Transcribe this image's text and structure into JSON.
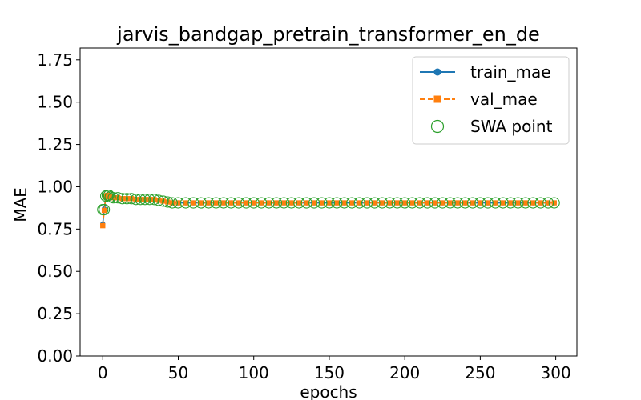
{
  "chart_data": {
    "type": "line",
    "title": "jarvis_bandgap_pretrain_transformer_en_de",
    "xlabel": "epochs",
    "ylabel": "MAE",
    "xlim": [
      -15,
      314
    ],
    "ylim": [
      0,
      1.82
    ],
    "xticks": [
      0,
      50,
      100,
      150,
      200,
      250,
      300
    ],
    "xtick_labels": [
      "0",
      "50",
      "100",
      "150",
      "200",
      "250",
      "300"
    ],
    "yticks": [
      0,
      0.25,
      0.5,
      0.75,
      1.0,
      1.25,
      1.5,
      1.75
    ],
    "ytick_labels": [
      "0.00",
      "0.25",
      "0.50",
      "0.75",
      "1.00",
      "1.25",
      "1.50",
      "1.75"
    ],
    "grid": false,
    "legend_position": "upper right",
    "series": [
      {
        "name": "train_mae",
        "color": "#1f77b4",
        "marker": "circle",
        "linestyle": "solid",
        "x": [
          0,
          1,
          2,
          3,
          4,
          5,
          7,
          10,
          13,
          16,
          19,
          22,
          25,
          28,
          31,
          34,
          37,
          40,
          43,
          46,
          50,
          55,
          60,
          65,
          70,
          75,
          80,
          85,
          90,
          95,
          100,
          105,
          110,
          115,
          120,
          125,
          130,
          135,
          140,
          145,
          150,
          155,
          160,
          165,
          170,
          175,
          180,
          185,
          190,
          195,
          200,
          205,
          210,
          215,
          220,
          225,
          230,
          235,
          240,
          245,
          250,
          255,
          260,
          265,
          270,
          275,
          280,
          285,
          290,
          295,
          299
        ],
        "values": [
          0.78,
          0.87,
          0.94,
          0.95,
          0.95,
          0.94,
          0.94,
          0.935,
          0.93,
          0.93,
          0.93,
          0.925,
          0.925,
          0.925,
          0.925,
          0.925,
          0.92,
          0.915,
          0.91,
          0.905,
          0.905,
          0.905,
          0.905,
          0.905,
          0.905,
          0.905,
          0.905,
          0.905,
          0.905,
          0.905,
          0.905,
          0.905,
          0.905,
          0.905,
          0.905,
          0.905,
          0.905,
          0.905,
          0.905,
          0.905,
          0.905,
          0.905,
          0.905,
          0.905,
          0.905,
          0.905,
          0.905,
          0.905,
          0.905,
          0.905,
          0.905,
          0.905,
          0.905,
          0.905,
          0.905,
          0.905,
          0.905,
          0.905,
          0.905,
          0.905,
          0.905,
          0.905,
          0.905,
          0.905,
          0.905,
          0.905,
          0.905,
          0.905,
          0.905,
          0.905,
          0.905
        ]
      },
      {
        "name": "val_mae",
        "color": "#ff7f0e",
        "marker": "square",
        "linestyle": "dashed",
        "x": [
          0,
          1,
          2,
          3,
          4,
          5,
          7,
          10,
          13,
          16,
          19,
          22,
          25,
          28,
          31,
          34,
          37,
          40,
          43,
          46,
          50,
          55,
          60,
          65,
          70,
          75,
          80,
          85,
          90,
          95,
          100,
          105,
          110,
          115,
          120,
          125,
          130,
          135,
          140,
          145,
          150,
          155,
          160,
          165,
          170,
          175,
          180,
          185,
          190,
          195,
          200,
          205,
          210,
          215,
          220,
          225,
          230,
          235,
          240,
          245,
          250,
          255,
          260,
          265,
          270,
          275,
          280,
          285,
          290,
          295,
          299
        ],
        "values": [
          0.77,
          0.86,
          0.94,
          0.95,
          0.95,
          0.94,
          0.935,
          0.935,
          0.93,
          0.93,
          0.93,
          0.925,
          0.925,
          0.925,
          0.925,
          0.925,
          0.92,
          0.915,
          0.91,
          0.905,
          0.905,
          0.905,
          0.905,
          0.905,
          0.905,
          0.905,
          0.905,
          0.905,
          0.905,
          0.905,
          0.905,
          0.905,
          0.905,
          0.905,
          0.905,
          0.905,
          0.905,
          0.905,
          0.905,
          0.905,
          0.905,
          0.905,
          0.905,
          0.905,
          0.905,
          0.905,
          0.905,
          0.905,
          0.905,
          0.905,
          0.905,
          0.905,
          0.905,
          0.905,
          0.905,
          0.905,
          0.905,
          0.905,
          0.905,
          0.905,
          0.905,
          0.905,
          0.905,
          0.905,
          0.905,
          0.905,
          0.905,
          0.905,
          0.905,
          0.905,
          0.905
        ]
      },
      {
        "name": "SWA point",
        "color": "#2ca02c",
        "marker": "open-circle",
        "linestyle": "none",
        "x": [
          0,
          1,
          2,
          3,
          4,
          5,
          7,
          10,
          13,
          16,
          19,
          22,
          25,
          28,
          31,
          34,
          37,
          40,
          43,
          46,
          50,
          55,
          60,
          65,
          70,
          75,
          80,
          85,
          90,
          95,
          100,
          105,
          110,
          115,
          120,
          125,
          130,
          135,
          140,
          145,
          150,
          155,
          160,
          165,
          170,
          175,
          180,
          185,
          190,
          195,
          200,
          205,
          210,
          215,
          220,
          225,
          230,
          235,
          240,
          245,
          250,
          255,
          260,
          265,
          270,
          275,
          280,
          285,
          290,
          295,
          299
        ],
        "values": [
          0.865,
          0.865,
          0.945,
          0.95,
          0.95,
          0.94,
          0.935,
          0.935,
          0.93,
          0.93,
          0.93,
          0.925,
          0.925,
          0.925,
          0.925,
          0.925,
          0.92,
          0.915,
          0.91,
          0.905,
          0.905,
          0.905,
          0.905,
          0.905,
          0.905,
          0.905,
          0.905,
          0.905,
          0.905,
          0.905,
          0.905,
          0.905,
          0.905,
          0.905,
          0.905,
          0.905,
          0.905,
          0.905,
          0.905,
          0.905,
          0.905,
          0.905,
          0.905,
          0.905,
          0.905,
          0.905,
          0.905,
          0.905,
          0.905,
          0.905,
          0.905,
          0.905,
          0.905,
          0.905,
          0.905,
          0.905,
          0.905,
          0.905,
          0.905,
          0.905,
          0.905,
          0.905,
          0.905,
          0.905,
          0.905,
          0.905,
          0.905,
          0.905,
          0.905,
          0.905,
          0.905
        ]
      }
    ]
  }
}
